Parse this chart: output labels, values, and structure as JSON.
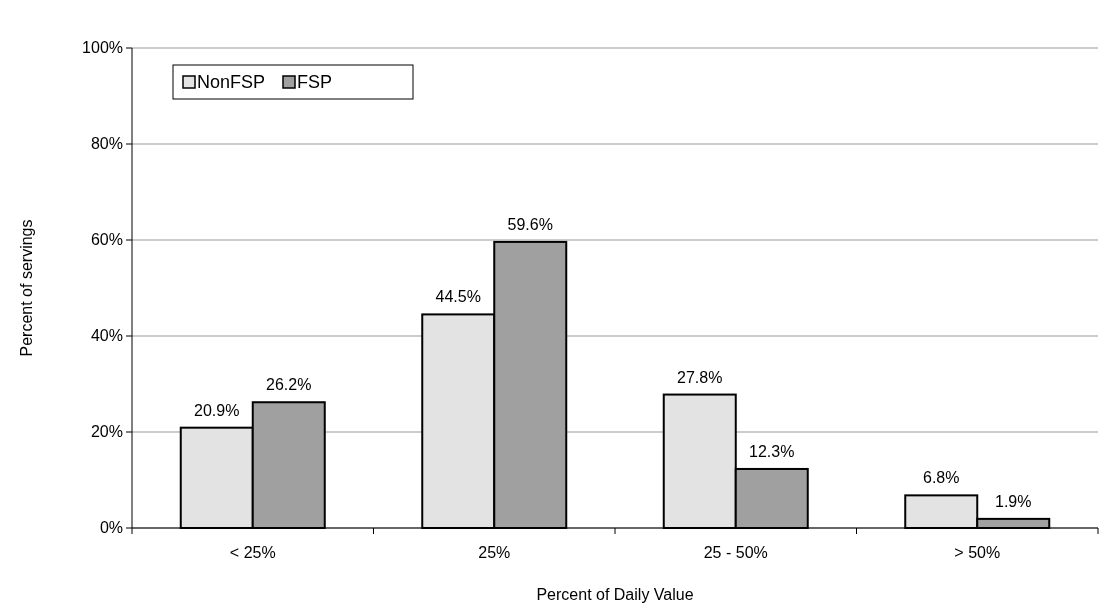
{
  "chart_data": {
    "type": "bar",
    "xlabel": "Percent of Daily Value",
    "ylabel": "Percent of servings",
    "categories": [
      "< 25%",
      "25%",
      "25 - 50%",
      "> 50%"
    ],
    "series": [
      {
        "name": "NonFSP",
        "color": "#e3e3e3",
        "values": [
          20.9,
          44.5,
          27.8,
          6.8
        ],
        "value_labels": [
          "20.9%",
          "44.5%",
          "27.8%",
          "6.8%"
        ]
      },
      {
        "name": "FSP",
        "color": "#a0a0a0",
        "values": [
          26.2,
          59.6,
          12.3,
          1.9
        ],
        "value_labels": [
          "26.2%",
          "59.6%",
          "12.3%",
          "1.9%"
        ]
      }
    ],
    "ylim": [
      0,
      100
    ],
    "yticks": [
      {
        "value": 0,
        "label": "0%"
      },
      {
        "value": 20,
        "label": "20%"
      },
      {
        "value": 40,
        "label": "40%"
      },
      {
        "value": 60,
        "label": "60%"
      },
      {
        "value": 80,
        "label": "80%"
      },
      {
        "value": 100,
        "label": "100%"
      }
    ],
    "grid": "y",
    "legend": "top left"
  }
}
